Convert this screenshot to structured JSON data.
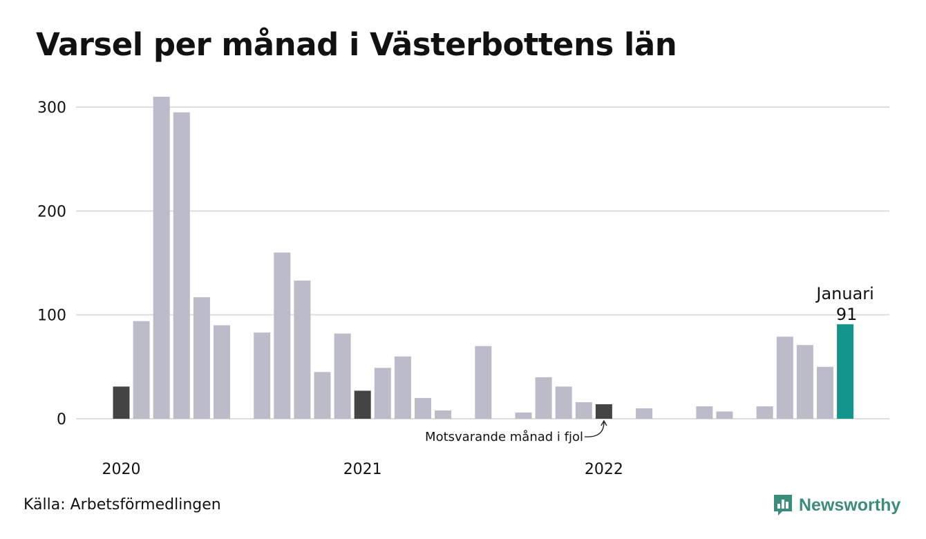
{
  "title": "Varsel per månad i Västerbottens län",
  "source": "Källa: Arbetsförmedlingen",
  "brand": "Newsworthy",
  "colors": {
    "bar": "#bcbbc9",
    "previous_year": "#444444",
    "current": "#14958a",
    "grid": "#dddddd",
    "brand": "#3c8c7c"
  },
  "chart_data": {
    "type": "bar",
    "ylim": [
      0,
      310
    ],
    "yticks": [
      0,
      100,
      200,
      300
    ],
    "year_labels": [
      {
        "label": "2020",
        "month_index": 0
      },
      {
        "label": "2021",
        "month_index": 12
      },
      {
        "label": "2022",
        "month_index": 24
      }
    ],
    "months": [
      "2020-01",
      "2020-02",
      "2020-03",
      "2020-04",
      "2020-05",
      "2020-06",
      "2020-07",
      "2020-08",
      "2020-09",
      "2020-10",
      "2020-11",
      "2020-12",
      "2021-01",
      "2021-02",
      "2021-03",
      "2021-04",
      "2021-05",
      "2021-06",
      "2021-07",
      "2021-08",
      "2021-09",
      "2021-10",
      "2021-11",
      "2021-12",
      "2022-01",
      "2022-02",
      "2022-03",
      "2022-04",
      "2022-05",
      "2022-06",
      "2022-07",
      "2022-08",
      "2022-09",
      "2022-10",
      "2022-11",
      "2022-12",
      "2023-01"
    ],
    "values": [
      31,
      94,
      310,
      295,
      117,
      90,
      0,
      83,
      160,
      133,
      45,
      82,
      27,
      49,
      60,
      20,
      8,
      0,
      70,
      0,
      6,
      40,
      31,
      16,
      14,
      0,
      10,
      0,
      0,
      12,
      7,
      0,
      12,
      79,
      71,
      50,
      91
    ],
    "highlight_previous_year": [
      0,
      12,
      24
    ],
    "highlight_current": 36,
    "current_label": {
      "month": "Januari",
      "value": "91"
    },
    "annotation": "Motsvarande månad i fjol"
  }
}
